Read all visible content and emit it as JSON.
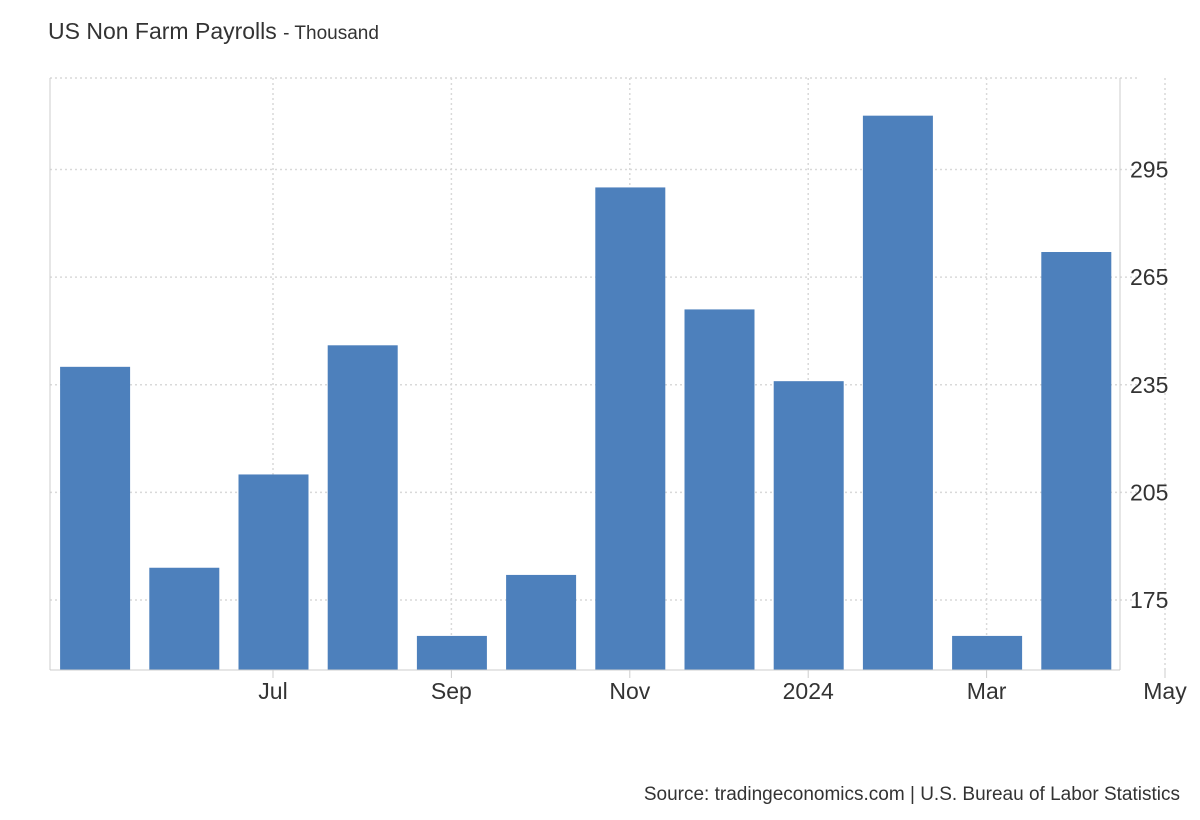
{
  "chart_data": {
    "type": "bar",
    "title": "US Non Farm Payrolls",
    "subtitle": "- Thousand",
    "categories": [
      "2023-06",
      "2023-07",
      "2023-08",
      "2023-09",
      "2023-10",
      "2023-11",
      "2023-12",
      "2024-01",
      "2024-02",
      "2024-03",
      "2024-04",
      "2024-05"
    ],
    "values": [
      240,
      184,
      210,
      246,
      165,
      182,
      290,
      256,
      236,
      310,
      165,
      272
    ],
    "x_tick_labels": [
      {
        "category": "2023-07",
        "label": "Jul"
      },
      {
        "category": "2023-09",
        "label": "Sep"
      },
      {
        "category": "2023-11",
        "label": "Nov"
      },
      {
        "category": "2024-01",
        "label": "2024"
      },
      {
        "category": "2024-03",
        "label": "Mar"
      },
      {
        "category": "2024-05",
        "label": "May"
      }
    ],
    "y_ticks": [
      175,
      205,
      235,
      265,
      295
    ],
    "ylim": [
      155.5,
      320.5
    ],
    "y_axis_side": "right",
    "xlabel": "",
    "ylabel": "",
    "grid": true,
    "bar_color": "#4d80bc",
    "grid_color": "#d9d9d9"
  },
  "source": "Source: tradingeconomics.com | U.S. Bureau of Labor Statistics"
}
